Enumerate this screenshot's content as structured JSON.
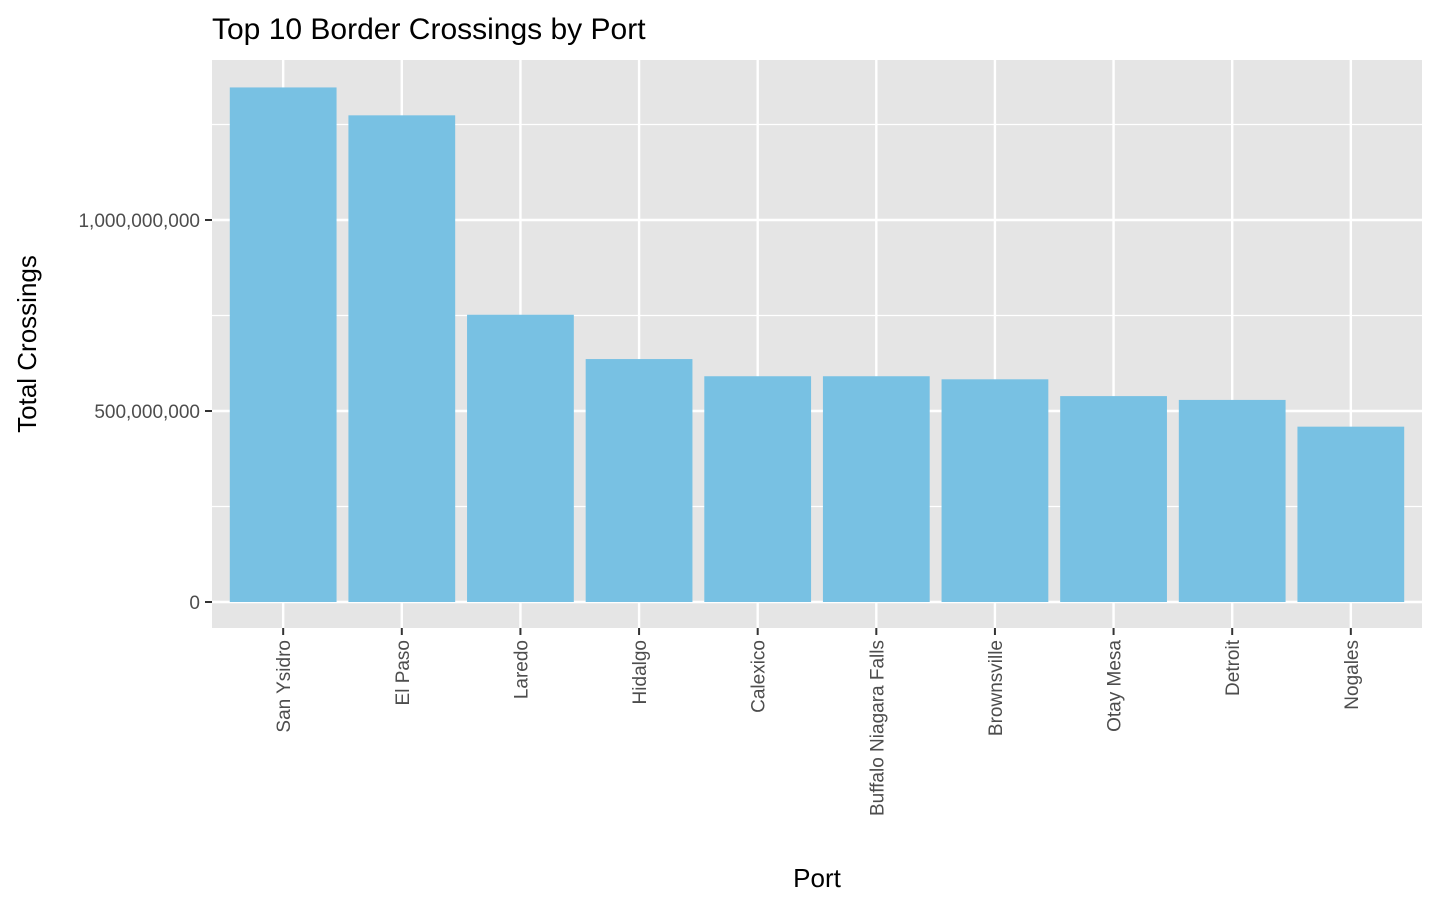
{
  "chart_data": {
    "type": "bar",
    "title": "Top 10 Border Crossings by Port",
    "xlabel": "Port",
    "ylabel": "Total Crossings",
    "categories": [
      "San Ysidro",
      "El Paso",
      "Laredo",
      "Hidalgo",
      "Calexico",
      "Buffalo Niagara Falls",
      "Brownsville",
      "Otay Mesa",
      "Detroit",
      "Nogales"
    ],
    "values": [
      1347000000,
      1274000000,
      752000000,
      636000000,
      591000000,
      591000000,
      583000000,
      539000000,
      529000000,
      459000000
    ],
    "ylim": [
      -70000000,
      1415000000
    ],
    "y_ticks": [
      0,
      500000000,
      1000000000
    ],
    "y_tick_labels": [
      "0",
      "500,000,000",
      "1,000,000,000"
    ],
    "y_minor_ticks": [
      250000000,
      750000000,
      1250000000
    ],
    "grid": true,
    "colors": {
      "bar": "#78C1E3",
      "panel": "#E5E5E5",
      "grid": "#FFFFFF",
      "tick": "#333333"
    }
  }
}
